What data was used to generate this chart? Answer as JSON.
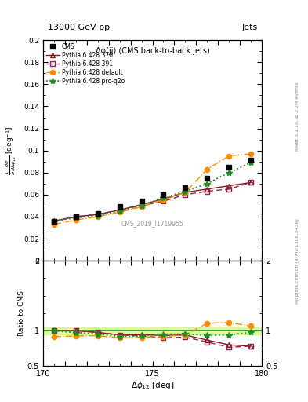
{
  "title_top": "13000 GeV pp",
  "title_right": "Jets",
  "plot_title": "Δφ(jj) (CMS back-to-back jets)",
  "ylabel_main": "$\\frac{1}{\\bar{\\sigma}}\\frac{d\\sigma}{d\\Delta\\phi_{12}}$ [deg$^{-1}$]",
  "ylabel_ratio": "Ratio to CMS",
  "xlabel": "$\\Delta\\phi_{12}$ [deg]",
  "right_label_top": "Rivet 3.1.10, ≥ 3.2M events",
  "right_label_bot": "mcplots.cern.ch [arXiv:1306.3436]",
  "cms_label": "CMS_2019_I1719955",
  "xlim": [
    170,
    180
  ],
  "ylim_main": [
    0.0,
    0.2
  ],
  "ylim_ratio": [
    0.5,
    2.0
  ],
  "x_cms": [
    170.5,
    171.5,
    172.5,
    173.5,
    174.5,
    175.5,
    176.5,
    177.5,
    178.5,
    179.5
  ],
  "y_cms": [
    0.036,
    0.04,
    0.043,
    0.049,
    0.054,
    0.06,
    0.066,
    0.075,
    0.085,
    0.091
  ],
  "x_370": [
    170.5,
    171.5,
    172.5,
    173.5,
    174.5,
    175.5,
    176.5,
    177.5,
    178.5,
    179.5
  ],
  "y_370": [
    0.036,
    0.04,
    0.042,
    0.046,
    0.051,
    0.056,
    0.062,
    0.065,
    0.068,
    0.071
  ],
  "x_391": [
    170.5,
    171.5,
    172.5,
    173.5,
    174.5,
    175.5,
    176.5,
    177.5,
    178.5,
    179.5
  ],
  "y_391": [
    0.036,
    0.04,
    0.042,
    0.046,
    0.05,
    0.054,
    0.06,
    0.063,
    0.065,
    0.071
  ],
  "x_default": [
    170.5,
    171.5,
    172.5,
    173.5,
    174.5,
    175.5,
    176.5,
    177.5,
    178.5,
    179.5
  ],
  "y_default": [
    0.033,
    0.037,
    0.04,
    0.044,
    0.049,
    0.055,
    0.062,
    0.083,
    0.095,
    0.097
  ],
  "x_proq2o": [
    170.5,
    171.5,
    172.5,
    173.5,
    174.5,
    175.5,
    176.5,
    177.5,
    178.5,
    179.5
  ],
  "y_proq2o": [
    0.036,
    0.039,
    0.041,
    0.045,
    0.05,
    0.057,
    0.063,
    0.07,
    0.08,
    0.089
  ],
  "color_cms": "#000000",
  "color_370": "#8b1a1a",
  "color_391": "#8b2252",
  "color_default": "#ff8c00",
  "color_proq2o": "#228b22",
  "ratio_370": [
    1.0,
    1.0,
    0.977,
    0.939,
    0.944,
    0.933,
    0.939,
    0.867,
    0.8,
    0.78
  ],
  "ratio_391": [
    1.0,
    1.0,
    0.977,
    0.939,
    0.926,
    0.9,
    0.909,
    0.84,
    0.765,
    0.78
  ],
  "ratio_default": [
    0.917,
    0.925,
    0.93,
    0.898,
    0.907,
    0.917,
    0.939,
    1.107,
    1.118,
    1.066
  ],
  "ratio_proq2o": [
    1.0,
    0.975,
    0.953,
    0.918,
    0.926,
    0.95,
    0.955,
    0.933,
    0.941,
    0.978
  ],
  "band_color": "#adff2f",
  "band_alpha": 0.45
}
